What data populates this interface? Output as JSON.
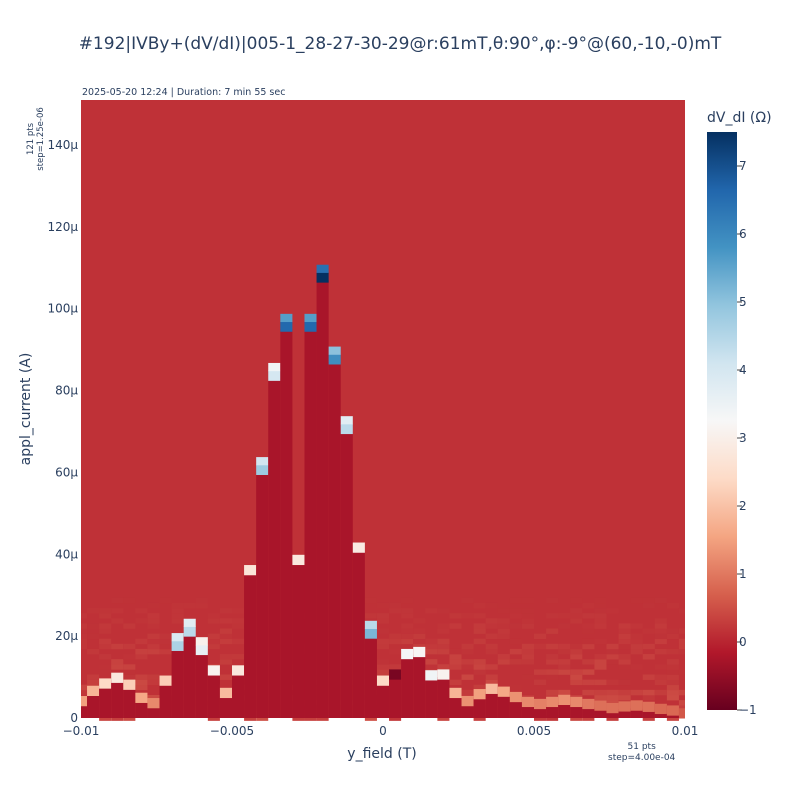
{
  "chart_data": {
    "type": "heatmap",
    "title": "#192|IVBy+(dV/dI)|005-1_28-27-30-29@r:61mT,θ:90°,φ:-9°@(60,-10,-0)mT",
    "subtitle": "2025-05-20 12:24 | Duration: 7 min 55 sec",
    "xlabel": "y_field (T)",
    "ylabel": "appl_current (A)",
    "x_points_label": "51 pts",
    "x_step_label": "step=4.00e-04",
    "y_points_label": "121 pts",
    "y_step_label": "step=1.25e-06",
    "xlim": [
      -0.01,
      0.01
    ],
    "ylim": [
      0,
      0.000151
    ],
    "x_ticks": [
      -0.01,
      -0.005,
      0,
      0.005,
      0.01
    ],
    "x_tick_labels": [
      "−0.01",
      "−0.005",
      "0",
      "0.005",
      "0.01"
    ],
    "y_ticks": [
      0,
      2e-05,
      4e-05,
      6e-05,
      8e-05,
      0.0001,
      0.00012,
      0.00014
    ],
    "y_tick_labels": [
      "0",
      "20μ",
      "40μ",
      "60μ",
      "80μ",
      "100μ",
      "120μ",
      "140μ"
    ],
    "x_start": -0.01,
    "x_step": 0.0004,
    "x_count": 51,
    "y_step": 1.25e-06,
    "y_count": 121,
    "background_value": 0.15,
    "superconducting_value": -0.25,
    "colorbar_title": "dV_dI (Ω)",
    "colorbar_range": [
      -1,
      7.5
    ],
    "colorbar_ticks": [
      -1,
      0,
      1,
      2,
      3,
      4,
      5,
      6,
      7
    ],
    "colorscale": [
      [
        0.0,
        "#67001f"
      ],
      [
        0.1,
        "#b2182b"
      ],
      [
        0.2,
        "#d6604d"
      ],
      [
        0.3,
        "#f4a582"
      ],
      [
        0.4,
        "#fddbc7"
      ],
      [
        0.5,
        "#f7f7f7"
      ],
      [
        0.6,
        "#d1e5f0"
      ],
      [
        0.7,
        "#92c5de"
      ],
      [
        0.8,
        "#4393c3"
      ],
      [
        0.9,
        "#2166ac"
      ],
      [
        1.0,
        "#053061"
      ]
    ],
    "critical_current_A": [
      3.5e-06,
      6e-06,
      7.8e-06,
      9.2e-06,
      7.5e-06,
      4.3e-06,
      3e-06,
      8.5e-06,
      1.7e-05,
      2.05e-05,
      1.6e-05,
      1.1e-05,
      5.5e-06,
      1.1e-05,
      3.55e-05,
      6e-05,
      8.3e-05,
      9.5e-05,
      3.8e-05,
      9.5e-05,
      0.000107,
      8.7e-05,
      7e-05,
      4.1e-05,
      2e-05,
      8.5e-06,
      1e-05,
      1.5e-05,
      1.55e-05,
      9.8e-06,
      1e-05,
      5.5e-06,
      3.5e-06,
      5.2e-06,
      6.5e-06,
      5.8e-06,
      4.5e-06,
      3.3e-06,
      2.8e-06,
      3.3e-06,
      3.8e-06,
      3.3e-06,
      2.8e-06,
      2.4e-06,
      1.8e-06,
      2.2e-06,
      2.4e-06,
      2.1e-06,
      1.6e-06,
      1.2e-06,
      5e-07
    ],
    "peak_values": [
      1.5,
      1.8,
      2.4,
      2.8,
      2.2,
      1.6,
      1.2,
      2.2,
      4.6,
      4.4,
      3.6,
      3.1,
      1.9,
      2.8,
      2.7,
      4.8,
      4.0,
      6.6,
      2.8,
      6.6,
      7.6,
      5.9,
      4.4,
      2.9,
      5.2,
      2.4,
      -0.8,
      3.3,
      3.2,
      3.4,
      3.1,
      1.8,
      1.3,
      1.5,
      1.9,
      1.6,
      1.3,
      1.2,
      1.1,
      1.2,
      1.3,
      1.2,
      1.0,
      0.9,
      0.9,
      0.9,
      0.9,
      0.9,
      0.8,
      0.8,
      0.6
    ]
  }
}
